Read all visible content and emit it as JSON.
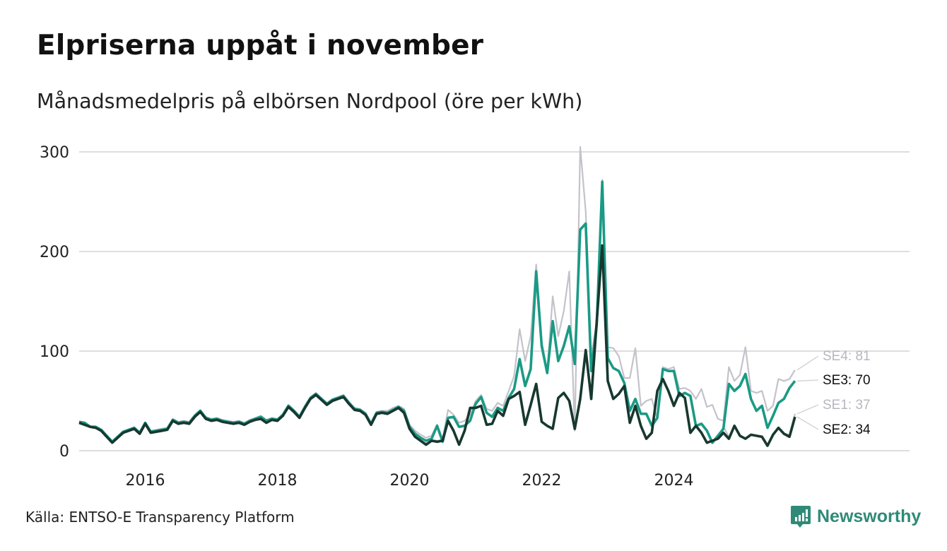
{
  "header": {
    "title": "Elpriserna uppåt i november",
    "subtitle": "Månadsmedelpris på elbörsen Nordpool (öre per kWh)"
  },
  "footer": {
    "source": "Källa: ENTSO-E Transparency Platform",
    "logo_text": "Newsworthy"
  },
  "colors": {
    "SE1": "#c4c2ca",
    "SE2": "#17382f",
    "SE3": "#1a9a85",
    "SE4": "#c4c2ca",
    "grid": "#dddde2",
    "brand": "#2f8a78"
  },
  "chart_data": {
    "type": "line",
    "title": "Elpriserna uppåt i november",
    "subtitle": "Månadsmedelpris på elbörsen Nordpool (öre per kWh)",
    "xlabel": "",
    "ylabel": "öre per kWh",
    "x_start": "2015-01",
    "x_end": "2025-11",
    "frequency": "monthly",
    "xlim": [
      2015.0,
      2026.1
    ],
    "ylim": [
      0,
      310
    ],
    "x_ticks": [
      {
        "value": 2016,
        "label": "2016"
      },
      {
        "value": 2018,
        "label": "2018"
      },
      {
        "value": 2020,
        "label": "2020"
      },
      {
        "value": 2022,
        "label": "2022"
      },
      {
        "value": 2024,
        "label": "2024"
      }
    ],
    "y_ticks": [
      {
        "value": 0,
        "label": "0"
      },
      {
        "value": 100,
        "label": "100"
      },
      {
        "value": 200,
        "label": "200"
      },
      {
        "value": 300,
        "label": "300"
      }
    ],
    "grid": true,
    "series": [
      {
        "name": "SE4",
        "end_label": "SE4: 81",
        "values": [
          29,
          28,
          24,
          24,
          21,
          15,
          9,
          14,
          19,
          21,
          23,
          18,
          28,
          20,
          21,
          22,
          23,
          32,
          29,
          30,
          29,
          36,
          41,
          34,
          32,
          33,
          31,
          30,
          29,
          30,
          28,
          31,
          33,
          35,
          31,
          33,
          32,
          37,
          46,
          41,
          35,
          45,
          54,
          58,
          53,
          48,
          52,
          54,
          56,
          49,
          43,
          42,
          38,
          28,
          39,
          40,
          40,
          43,
          45,
          42,
          26,
          20,
          16,
          13,
          15,
          26,
          12,
          41,
          36,
          28,
          30,
          36,
          50,
          56,
          42,
          40,
          48,
          45,
          60,
          75,
          122,
          90,
          115,
          187,
          110,
          80,
          155,
          115,
          140,
          180,
          20,
          305,
          240,
          95,
          130,
          272,
          104,
          103,
          95,
          73,
          73,
          103,
          45,
          50,
          52,
          32,
          84,
          82,
          84,
          62,
          63,
          60,
          52,
          62,
          44,
          46,
          32,
          30,
          84,
          70,
          76,
          104,
          60,
          58,
          60,
          40,
          45,
          72,
          70,
          72,
          81
        ]
      },
      {
        "name": "SE3",
        "end_label": "SE3: 70",
        "values": [
          29,
          28,
          24,
          24,
          21,
          15,
          9,
          14,
          19,
          21,
          23,
          18,
          28,
          19,
          20,
          21,
          22,
          31,
          28,
          29,
          28,
          35,
          40,
          33,
          31,
          32,
          30,
          29,
          28,
          29,
          27,
          30,
          32,
          34,
          30,
          32,
          31,
          36,
          45,
          40,
          34,
          44,
          53,
          57,
          52,
          47,
          51,
          53,
          55,
          48,
          42,
          41,
          37,
          27,
          38,
          39,
          38,
          41,
          44,
          40,
          24,
          17,
          13,
          10,
          12,
          25,
          9,
          33,
          34,
          24,
          25,
          30,
          47,
          54,
          38,
          34,
          43,
          40,
          53,
          62,
          92,
          65,
          82,
          180,
          105,
          78,
          130,
          90,
          105,
          125,
          87,
          222,
          228,
          80,
          127,
          270,
          93,
          83,
          80,
          68,
          40,
          52,
          37,
          37,
          25,
          33,
          82,
          80,
          80,
          55,
          58,
          55,
          25,
          27,
          20,
          8,
          15,
          22,
          67,
          60,
          65,
          77,
          52,
          40,
          45,
          23,
          35,
          48,
          52,
          63,
          70
        ]
      },
      {
        "name": "SE1",
        "end_label": "SE1: 37",
        "values": [
          28,
          26,
          24,
          23,
          20,
          14,
          8,
          13,
          18,
          20,
          22,
          17,
          27,
          18,
          19,
          20,
          21,
          30,
          27,
          28,
          27,
          34,
          39,
          32,
          30,
          31,
          29,
          28,
          27,
          28,
          26,
          29,
          31,
          32,
          28,
          31,
          30,
          35,
          44,
          39,
          33,
          43,
          52,
          56,
          51,
          46,
          50,
          52,
          54,
          47,
          41,
          40,
          36,
          26,
          37,
          38,
          37,
          40,
          43,
          38,
          22,
          15,
          11,
          7,
          11,
          10,
          11,
          31,
          21,
          7,
          21,
          43,
          43,
          45,
          26,
          27,
          40,
          35,
          52,
          55,
          59,
          26,
          46,
          67,
          29,
          25,
          22,
          53,
          58,
          50,
          22,
          52,
          101,
          52,
          130,
          206,
          70,
          52,
          57,
          65,
          28,
          45,
          25,
          12,
          18,
          60,
          72,
          60,
          45,
          58,
          53,
          18,
          25,
          18,
          8,
          10,
          12,
          24,
          14,
          25,
          15,
          12,
          16,
          15,
          14,
          5,
          16,
          23,
          17,
          16,
          37
        ]
      },
      {
        "name": "SE2",
        "end_label": "SE2: 34",
        "values": [
          28,
          26,
          24,
          23,
          20,
          14,
          8,
          13,
          18,
          20,
          22,
          17,
          27,
          18,
          19,
          20,
          21,
          30,
          27,
          28,
          27,
          34,
          39,
          32,
          30,
          31,
          29,
          28,
          27,
          28,
          26,
          29,
          31,
          32,
          28,
          31,
          30,
          35,
          44,
          39,
          33,
          43,
          52,
          56,
          51,
          46,
          50,
          52,
          54,
          47,
          41,
          40,
          36,
          26,
          37,
          38,
          37,
          40,
          43,
          38,
          22,
          14,
          10,
          6,
          10,
          9,
          10,
          30,
          20,
          6,
          20,
          43,
          43,
          45,
          26,
          27,
          40,
          35,
          52,
          55,
          59,
          26,
          46,
          67,
          29,
          25,
          22,
          53,
          58,
          50,
          22,
          52,
          101,
          52,
          130,
          206,
          70,
          52,
          57,
          65,
          28,
          45,
          25,
          12,
          18,
          60,
          72,
          60,
          45,
          58,
          53,
          18,
          25,
          18,
          8,
          10,
          12,
          18,
          12,
          25,
          15,
          12,
          16,
          15,
          14,
          5,
          16,
          23,
          17,
          14,
          34
        ]
      }
    ]
  }
}
